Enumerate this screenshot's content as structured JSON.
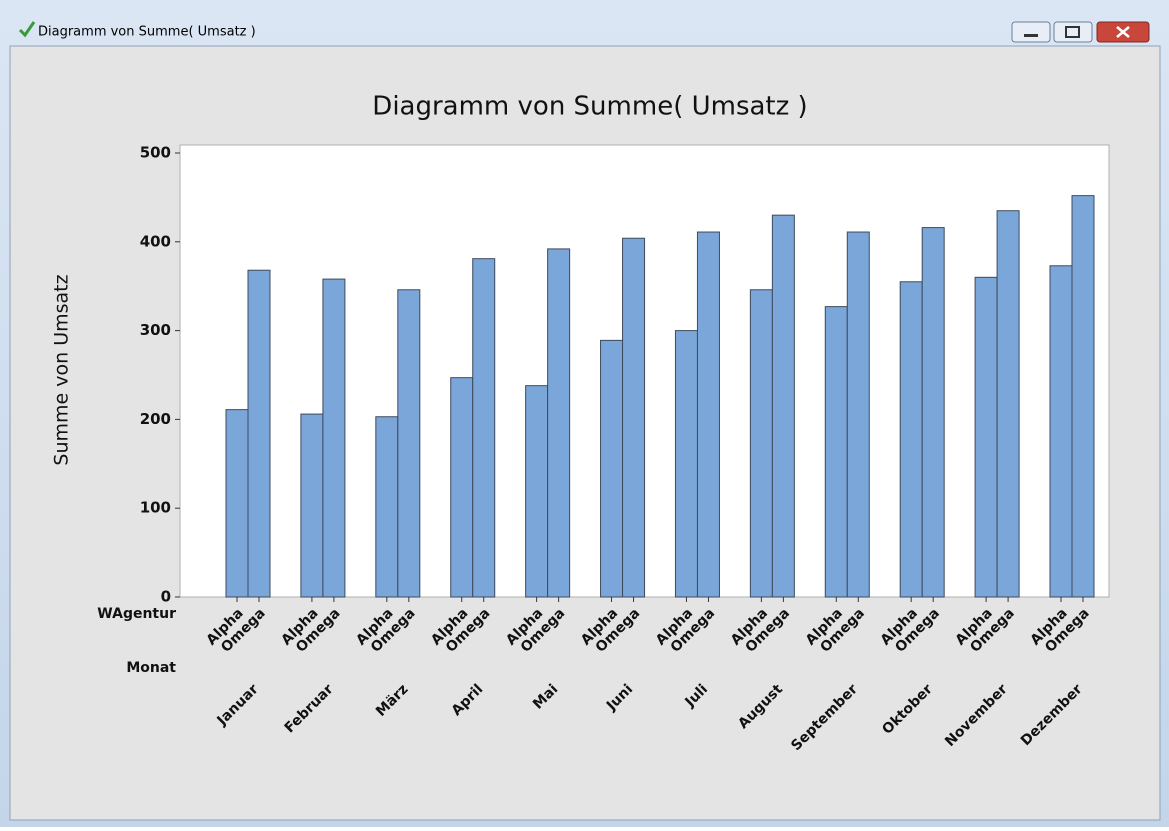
{
  "window": {
    "title": "Diagramm von Summe( Umsatz )"
  },
  "chart_data": {
    "type": "bar",
    "title": "Diagramm von Summe( Umsatz )",
    "y_label": "Summe von Umsatz",
    "group_label": "WAgentur",
    "category_label": "Monat",
    "categories": [
      "Januar",
      "Februar",
      "März",
      "April",
      "Mai",
      "Juni",
      "Juli",
      "August",
      "September",
      "Oktober",
      "November",
      "Dezember"
    ],
    "series": [
      {
        "name": "Alpha",
        "color": "#7ba6da",
        "values": [
          211,
          206,
          203,
          247,
          238,
          289,
          300,
          346,
          327,
          355,
          360,
          373
        ]
      },
      {
        "name": "Omega",
        "color": "#7ba6da",
        "values": [
          368,
          358,
          346,
          381,
          392,
          404,
          411,
          430,
          411,
          416,
          435,
          452
        ]
      }
    ],
    "ylim": [
      0,
      500
    ],
    "yticks": [
      0,
      100,
      200,
      300,
      400,
      500
    ]
  }
}
